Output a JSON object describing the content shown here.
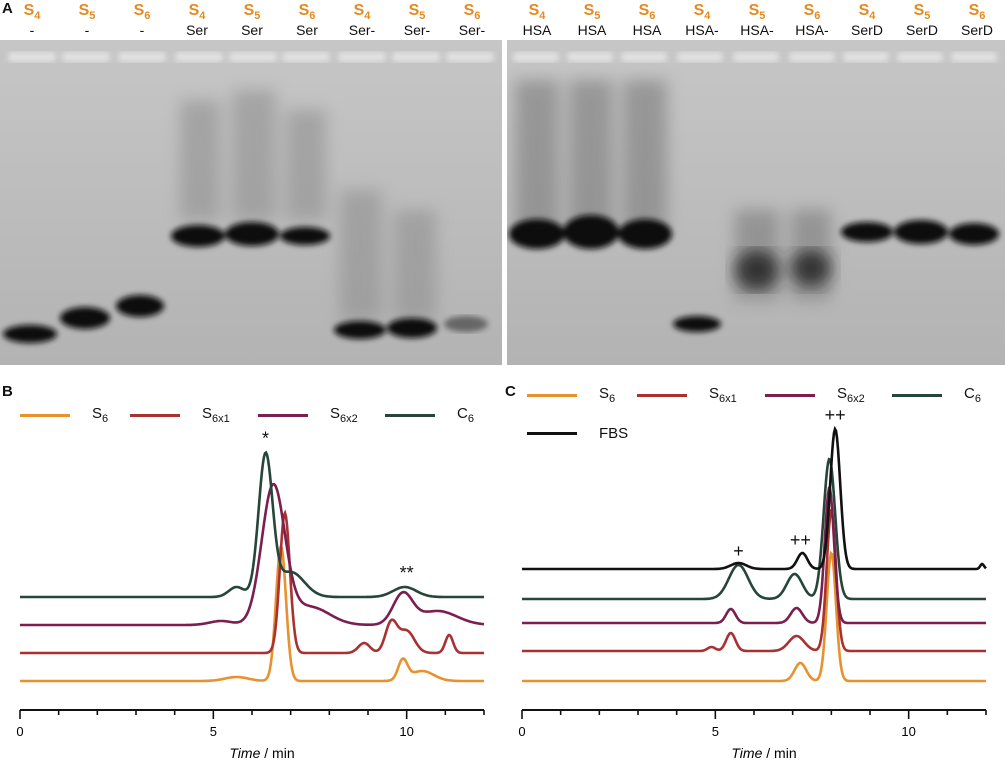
{
  "panel_labels": {
    "a": "A",
    "b": "B",
    "c": "C"
  },
  "gel_lanes_left": [
    {
      "s": "S",
      "sub": "4",
      "t": "-"
    },
    {
      "s": "S",
      "sub": "5",
      "t": "-"
    },
    {
      "s": "S",
      "sub": "6",
      "t": "-"
    },
    {
      "s": "S",
      "sub": "4",
      "t": "Ser"
    },
    {
      "s": "S",
      "sub": "5",
      "t": "Ser"
    },
    {
      "s": "S",
      "sub": "6",
      "t": "Ser"
    },
    {
      "s": "S",
      "sub": "4",
      "t": "Ser-"
    },
    {
      "s": "S",
      "sub": "5",
      "t": "Ser-"
    },
    {
      "s": "S",
      "sub": "6",
      "t": "Ser-"
    }
  ],
  "gel_lanes_right": [
    {
      "s": "S",
      "sub": "4",
      "t": "HSA"
    },
    {
      "s": "S",
      "sub": "5",
      "t": "HSA"
    },
    {
      "s": "S",
      "sub": "6",
      "t": "HSA"
    },
    {
      "s": "S",
      "sub": "4",
      "t": "HSA-"
    },
    {
      "s": "S",
      "sub": "5",
      "t": "HSA-"
    },
    {
      "s": "S",
      "sub": "6",
      "t": "HSA-"
    },
    {
      "s": "S",
      "sub": "4",
      "t": "SerD"
    },
    {
      "s": "S",
      "sub": "5",
      "t": "SerD"
    },
    {
      "s": "S",
      "sub": "6",
      "t": "SerD"
    }
  ],
  "colors": {
    "S6": "#e8922f",
    "S6x1": "#a83232",
    "S6x2": "#7b1f4f",
    "C6": "#26463a",
    "FBS": "#111111",
    "label_orange": "#e58a1f"
  },
  "legend_b": [
    {
      "key": "S6",
      "base": "S",
      "sub": "6"
    },
    {
      "key": "S6x1",
      "base": "S",
      "sub": "6x1"
    },
    {
      "key": "S6x2",
      "base": "S",
      "sub": "6x2"
    },
    {
      "key": "C6",
      "base": "C",
      "sub": "6"
    }
  ],
  "legend_c": [
    {
      "key": "S6",
      "base": "S",
      "sub": "6"
    },
    {
      "key": "S6x1",
      "base": "S",
      "sub": "6x1"
    },
    {
      "key": "S6x2",
      "base": "S",
      "sub": "6x2"
    },
    {
      "key": "C6",
      "base": "C",
      "sub": "6"
    },
    {
      "key": "FBS",
      "base": "FBS",
      "sub": ""
    }
  ],
  "chart_data": [
    {
      "type": "line",
      "panel": "B",
      "xlabel_italic": "Time",
      "xlabel_rest": " / min",
      "xlim": [
        0,
        12
      ],
      "xticks": [
        0,
        5,
        10
      ],
      "series": [
        {
          "name": "S6",
          "key": "S6",
          "baseline": 0,
          "peaks": [
            {
              "x": 5.6,
              "h": 4,
              "w": 0.3
            },
            {
              "x": 6.75,
              "h": 135,
              "w": 0.13
            },
            {
              "x": 9.9,
              "h": 20,
              "w": 0.12
            },
            {
              "x": 10.4,
              "h": 10,
              "w": 0.3
            }
          ]
        },
        {
          "name": "S6x1",
          "key": "S6x1",
          "baseline": 28,
          "peaks": [
            {
              "x": 6.85,
              "h": 140,
              "w": 0.13
            },
            {
              "x": 8.9,
              "h": 10,
              "w": 0.15
            },
            {
              "x": 9.6,
              "h": 30,
              "w": 0.15
            },
            {
              "x": 10.0,
              "h": 22,
              "w": 0.2
            },
            {
              "x": 11.1,
              "h": 18,
              "w": 0.1
            }
          ]
        },
        {
          "name": "S6x2",
          "key": "S6x2",
          "baseline": 56,
          "peaks": [
            {
              "x": 5.2,
              "h": 4,
              "w": 0.3
            },
            {
              "x": 6.55,
              "h": 138,
              "w": 0.3
            },
            {
              "x": 7.5,
              "h": 18,
              "w": 0.5
            },
            {
              "x": 9.9,
              "h": 30,
              "w": 0.25
            },
            {
              "x": 10.8,
              "h": 14,
              "w": 0.5
            }
          ]
        },
        {
          "name": "C6",
          "key": "C6",
          "baseline": 84,
          "peaks": [
            {
              "x": 5.6,
              "h": 10,
              "w": 0.2
            },
            {
              "x": 6.35,
              "h": 140,
              "w": 0.18
            },
            {
              "x": 7.0,
              "h": 25,
              "w": 0.35
            },
            {
              "x": 9.95,
              "h": 10,
              "w": 0.3
            }
          ]
        }
      ],
      "annotations": [
        {
          "text": "*",
          "x": 6.35,
          "above": "C6"
        },
        {
          "text": "**",
          "x": 10.0,
          "above": "C6"
        }
      ]
    },
    {
      "type": "line",
      "panel": "C",
      "xlabel_italic": "Time",
      "xlabel_rest": " / min",
      "xlim": [
        0,
        12
      ],
      "xticks": [
        0,
        5,
        10
      ],
      "series": [
        {
          "name": "S6",
          "key": "S6",
          "baseline": 0,
          "peaks": [
            {
              "x": 7.2,
              "h": 18,
              "w": 0.15
            },
            {
              "x": 8.0,
              "h": 128,
              "w": 0.12
            }
          ]
        },
        {
          "name": "S6x1",
          "key": "S6x1",
          "baseline": 30,
          "peaks": [
            {
              "x": 4.9,
              "h": 4,
              "w": 0.1
            },
            {
              "x": 5.4,
              "h": 18,
              "w": 0.12
            },
            {
              "x": 7.1,
              "h": 15,
              "w": 0.2
            },
            {
              "x": 8.0,
              "h": 140,
              "w": 0.12
            }
          ]
        },
        {
          "name": "S6x2",
          "key": "S6x2",
          "baseline": 58,
          "peaks": [
            {
              "x": 5.4,
              "h": 14,
              "w": 0.12
            },
            {
              "x": 7.1,
              "h": 15,
              "w": 0.15
            },
            {
              "x": 7.95,
              "h": 135,
              "w": 0.12
            }
          ]
        },
        {
          "name": "C6",
          "key": "C6",
          "baseline": 82,
          "peaks": [
            {
              "x": 5.6,
              "h": 34,
              "w": 0.25
            },
            {
              "x": 7.05,
              "h": 25,
              "w": 0.2
            },
            {
              "x": 7.95,
              "h": 140,
              "w": 0.15
            }
          ]
        },
        {
          "name": "FBS",
          "key": "FBS",
          "baseline": 112,
          "peaks": [
            {
              "x": 5.6,
              "h": 6,
              "w": 0.2
            },
            {
              "x": 7.25,
              "h": 16,
              "w": 0.13
            },
            {
              "x": 8.1,
              "h": 140,
              "w": 0.13
            },
            {
              "x": 11.9,
              "h": 5,
              "w": 0.05
            }
          ]
        }
      ],
      "annotations": [
        {
          "text": "+",
          "x": 5.6,
          "above": "C6"
        },
        {
          "text": "++",
          "x": 7.2,
          "above": "FBS"
        },
        {
          "text": "++",
          "x": 8.1,
          "above": "FBS"
        }
      ]
    }
  ]
}
